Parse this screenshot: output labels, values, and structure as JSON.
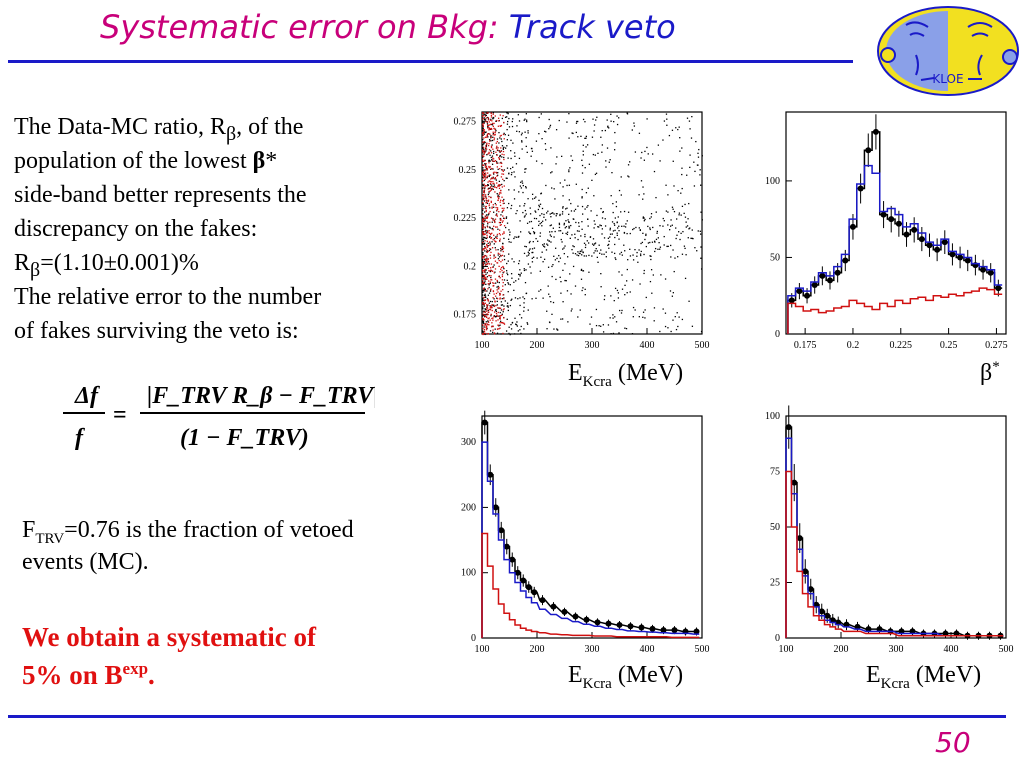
{
  "slide": {
    "title_part1": "Systematic error on Bkg:",
    "title_part2": "Track veto",
    "page_number": "50",
    "colors": {
      "title": "#c8007a",
      "accent_blue": "#1a1ac8",
      "highlight_red": "#e01010"
    }
  },
  "logo": {
    "text": "KLOE",
    "kind": "experiment-logo-two-faces"
  },
  "body": {
    "line1_a": "The Data-MC ratio, R",
    "line1_sub": "β",
    "line1_b": ", of the",
    "line2_a": "population of the lowest ",
    "line2_beta": "β",
    "line2_b": "*",
    "line3": "side-band better represents the",
    "line4": "discrepancy on the fakes:",
    "line5_a": "R",
    "line5_sub": "β",
    "line5_b": "=(1.10±0.001)%",
    "line6": "The relative error to the number",
    "line7": "of fakes surviving the veto is:"
  },
  "formula": {
    "lhs_num": "Δf",
    "lhs_den": "f",
    "eq": "=",
    "rhs_num": "|F_TRV R_β − F_TRV|",
    "rhs_den": "(1 − F_TRV)"
  },
  "ftrv": {
    "a": "F",
    "sub": "TRV",
    "b": "=0.76 is the fraction of vetoed",
    "line2": "events (MC)."
  },
  "conclusion": {
    "line1": "We obtain a systematic of",
    "line2_a": "5% on B",
    "line2_sup": "exp",
    "line2_b": "."
  },
  "axis_labels": {
    "ekcra_a": "E",
    "ekcra_sub": "Kcra",
    "ekcra_b": " (MeV)",
    "beta_a": "β",
    "beta_sup": "*"
  },
  "chart_data": [
    {
      "type": "scatter",
      "panel": "top-left",
      "x_ticks": [
        "100",
        "200",
        "300",
        "400",
        "500"
      ],
      "y_ticks": [
        "0.175",
        "0.2",
        "0.225",
        "0.25",
        "0.275"
      ],
      "xlim": [
        100,
        500
      ],
      "ylim": [
        0.165,
        0.28
      ],
      "series": [
        {
          "color": "#000000",
          "x_range": [
            100,
            500
          ],
          "y_range": [
            0.165,
            0.28
          ],
          "concentration_y": 0.217
        },
        {
          "color": "#d01010",
          "x_range": [
            100,
            140
          ],
          "y_range": [
            0.165,
            0.28
          ]
        }
      ]
    },
    {
      "type": "line",
      "panel": "top-right",
      "x_ticks": [
        "0.175",
        "0.2",
        "0.225",
        "0.25",
        "0.275"
      ],
      "y_ticks": [
        "0",
        "50",
        "100"
      ],
      "xlim": [
        0.165,
        0.28
      ],
      "ylim": [
        0,
        145
      ],
      "x": [
        0.168,
        0.172,
        0.176,
        0.18,
        0.184,
        0.188,
        0.192,
        0.196,
        0.2,
        0.204,
        0.208,
        0.212,
        0.216,
        0.22,
        0.224,
        0.228,
        0.232,
        0.236,
        0.24,
        0.244,
        0.248,
        0.252,
        0.256,
        0.26,
        0.264,
        0.268,
        0.272,
        0.276
      ],
      "series": [
        {
          "color": "#000000",
          "values": [
            22,
            28,
            25,
            32,
            38,
            35,
            40,
            48,
            70,
            95,
            120,
            132,
            78,
            75,
            72,
            65,
            68,
            62,
            58,
            55,
            60,
            52,
            50,
            48,
            45,
            42,
            40,
            30
          ]
        },
        {
          "color": "#1a1ac8",
          "values": [
            25,
            30,
            28,
            34,
            40,
            38,
            44,
            52,
            75,
            98,
            110,
            105,
            80,
            82,
            78,
            70,
            72,
            66,
            60,
            58,
            62,
            54,
            52,
            50,
            46,
            44,
            42,
            32
          ]
        },
        {
          "color": "#d01010",
          "values": [
            20,
            18,
            15,
            16,
            14,
            15,
            17,
            18,
            22,
            20,
            18,
            16,
            20,
            18,
            22,
            20,
            23,
            24,
            22,
            25,
            24,
            26,
            25,
            27,
            28,
            30,
            29,
            26
          ]
        }
      ]
    },
    {
      "type": "line",
      "panel": "bottom-left",
      "x_ticks": [
        "100",
        "200",
        "300",
        "400",
        "500"
      ],
      "y_ticks": [
        "0",
        "100",
        "200",
        "300"
      ],
      "xlim": [
        100,
        500
      ],
      "ylim": [
        0,
        340
      ],
      "x": [
        105,
        115,
        125,
        135,
        145,
        155,
        165,
        175,
        185,
        195,
        210,
        230,
        250,
        270,
        290,
        310,
        330,
        350,
        370,
        390,
        410,
        430,
        450,
        470,
        490
      ],
      "series": [
        {
          "color": "#000000",
          "values": [
            330,
            250,
            200,
            165,
            140,
            120,
            100,
            88,
            78,
            70,
            58,
            48,
            40,
            33,
            28,
            24,
            22,
            20,
            18,
            16,
            14,
            12,
            12,
            10,
            10
          ]
        },
        {
          "color": "#1a1ac8",
          "values": [
            300,
            240,
            190,
            150,
            120,
            100,
            85,
            72,
            62,
            54,
            44,
            36,
            30,
            25,
            21,
            18,
            15,
            13,
            11,
            10,
            9,
            8,
            7,
            7,
            6
          ]
        },
        {
          "color": "#d01010",
          "values": [
            160,
            110,
            75,
            52,
            38,
            28,
            20,
            15,
            12,
            10,
            8,
            6,
            5,
            4,
            4,
            3,
            3,
            2,
            2,
            2,
            2,
            2,
            1,
            1,
            1
          ]
        }
      ]
    },
    {
      "type": "line",
      "panel": "bottom-right",
      "x_ticks": [
        "100",
        "200",
        "300",
        "400",
        "500"
      ],
      "y_ticks": [
        "0",
        "25",
        "50",
        "75",
        "100"
      ],
      "xlim": [
        100,
        500
      ],
      "ylim": [
        0,
        100
      ],
      "x": [
        105,
        115,
        125,
        135,
        145,
        155,
        165,
        175,
        185,
        195,
        210,
        230,
        250,
        270,
        290,
        310,
        330,
        350,
        370,
        390,
        410,
        430,
        450,
        470,
        490
      ],
      "series": [
        {
          "color": "#000000",
          "values": [
            95,
            70,
            45,
            30,
            22,
            15,
            12,
            10,
            8,
            7,
            6,
            5,
            4,
            4,
            3,
            3,
            3,
            2,
            2,
            2,
            2,
            1,
            1,
            1,
            1
          ]
        },
        {
          "color": "#1a1ac8",
          "values": [
            90,
            65,
            40,
            28,
            20,
            14,
            10,
            8,
            7,
            6,
            5,
            4,
            3,
            3,
            3,
            2,
            2,
            2,
            2,
            1,
            1,
            1,
            1,
            1,
            1
          ]
        },
        {
          "color": "#d01010",
          "values": [
            75,
            50,
            30,
            20,
            14,
            10,
            8,
            6,
            5,
            4,
            3,
            3,
            2,
            2,
            2,
            1,
            1,
            1,
            1,
            1,
            1,
            1,
            1,
            1,
            1
          ]
        }
      ]
    }
  ]
}
